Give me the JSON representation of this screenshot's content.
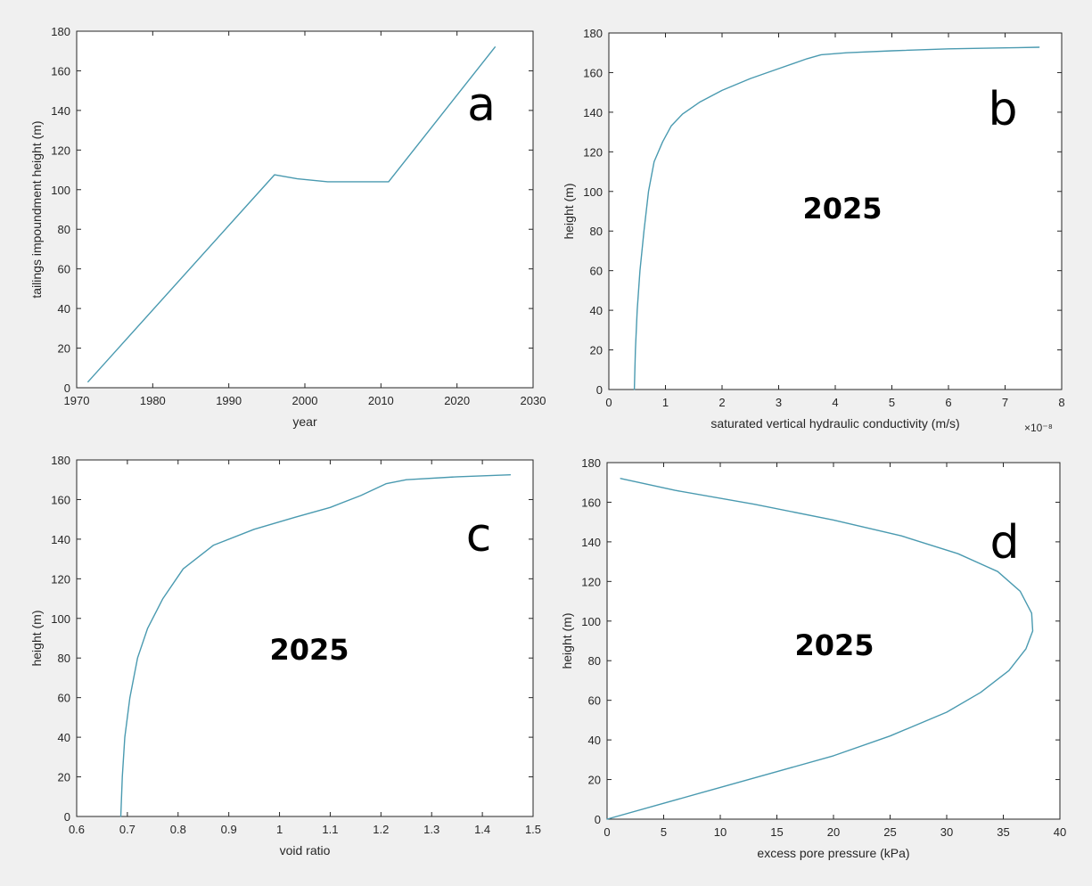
{
  "colors": {
    "figure_bg": "#f0f0f0",
    "axes_bg": "#ffffff",
    "axes_edge": "#262626",
    "line": "#4a9ab0",
    "text": "#262626"
  },
  "chart_data": [
    {
      "id": "a",
      "type": "line",
      "panel_label": "a",
      "annotation": "",
      "xlabel": "year",
      "ylabel": "tailings impoundment height (m)",
      "xlim": [
        1970,
        2030
      ],
      "ylim": [
        0,
        180
      ],
      "xticks": [
        1970,
        1980,
        1990,
        2000,
        2010,
        2020,
        2030
      ],
      "yticks": [
        0,
        20,
        40,
        60,
        80,
        100,
        120,
        140,
        160,
        180
      ],
      "x_exponent": "",
      "grid": false,
      "x": [
        1971.5,
        1996,
        1999,
        2003,
        2007,
        2011,
        2025
      ],
      "y": [
        3,
        107.5,
        105.5,
        104,
        104,
        104,
        172
      ]
    },
    {
      "id": "b",
      "type": "line",
      "panel_label": "b",
      "annotation": "2025",
      "xlabel": "saturated vertical hydraulic conductivity (m/s)",
      "ylabel": "height (m)",
      "xlim": [
        0,
        8
      ],
      "ylim": [
        0,
        180
      ],
      "xticks": [
        0,
        1,
        2,
        3,
        4,
        5,
        6,
        7,
        8
      ],
      "yticks": [
        0,
        20,
        40,
        60,
        80,
        100,
        120,
        140,
        160,
        180
      ],
      "x_exponent": "×10⁻⁸",
      "grid": false,
      "x": [
        0.45,
        0.47,
        0.5,
        0.55,
        0.62,
        0.7,
        0.8,
        0.95,
        1.1,
        1.3,
        1.6,
        2.0,
        2.5,
        3.0,
        3.5,
        3.75,
        4.2,
        5.0,
        6.0,
        7.0,
        7.6
      ],
      "y": [
        0,
        20,
        40,
        60,
        80,
        100,
        115,
        125,
        133,
        139,
        145,
        151,
        157,
        162,
        167,
        169,
        170,
        171,
        172,
        172.5,
        172.8
      ]
    },
    {
      "id": "c",
      "type": "line",
      "panel_label": "c",
      "annotation": "2025",
      "xlabel": "void ratio",
      "ylabel": "height (m)",
      "xlim": [
        0.6,
        1.5
      ],
      "ylim": [
        0,
        180
      ],
      "xticks": [
        0.6,
        0.7,
        0.8,
        0.9,
        1,
        1.1,
        1.2,
        1.3,
        1.4,
        1.5
      ],
      "yticks": [
        0,
        20,
        40,
        60,
        80,
        100,
        120,
        140,
        160,
        180
      ],
      "x_exponent": "",
      "grid": false,
      "x": [
        0.687,
        0.69,
        0.695,
        0.705,
        0.72,
        0.74,
        0.77,
        0.81,
        0.87,
        0.95,
        1.03,
        1.1,
        1.16,
        1.21,
        1.25,
        1.35,
        1.455
      ],
      "y": [
        0,
        20,
        40,
        60,
        80,
        95,
        110,
        125,
        137,
        145,
        151,
        156,
        162,
        168,
        170,
        171.5,
        172.5
      ]
    },
    {
      "id": "d",
      "type": "line",
      "panel_label": "d",
      "annotation": "2025",
      "xlabel": "excess pore pressure (kPa)",
      "ylabel": "height (m)",
      "xlim": [
        0,
        40
      ],
      "ylim": [
        0,
        180
      ],
      "xticks": [
        0,
        5,
        10,
        15,
        20,
        25,
        30,
        35,
        40
      ],
      "yticks": [
        0,
        20,
        40,
        60,
        80,
        100,
        120,
        140,
        160,
        180
      ],
      "x_exponent": "",
      "grid": false,
      "x": [
        0,
        5,
        10,
        15,
        20,
        25,
        30,
        33,
        35.5,
        37,
        37.6,
        37.5,
        36.5,
        34.5,
        31,
        26,
        20,
        13,
        6,
        1.2
      ],
      "y": [
        0,
        8,
        16,
        24,
        32,
        42,
        54,
        64,
        75,
        86,
        95,
        104,
        115,
        125,
        134,
        143,
        151,
        159,
        166,
        172
      ]
    }
  ]
}
